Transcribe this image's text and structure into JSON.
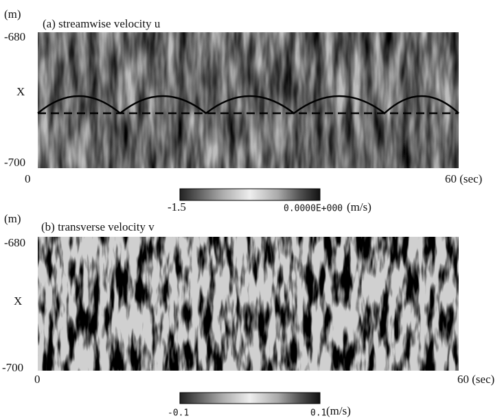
{
  "panels": [
    {
      "unit": "(m)",
      "title": "(a) streamwise velocity u",
      "y_top": "-680",
      "y_label": "X",
      "y_bottom": "-700",
      "x_start": "0",
      "x_end": "60 (sec)",
      "colorbar_min": "-1.5",
      "colorbar_max": "0.0000E+000",
      "colorbar_unit": "(m/s)"
    },
    {
      "unit": "(m)",
      "title": "(b) transverse velocity v",
      "y_top": "-680",
      "y_label": "X",
      "y_bottom": "-700",
      "x_start": "0",
      "x_end": "60 (sec)",
      "colorbar_min": "-0.1",
      "colorbar_max": "0.1",
      "colorbar_unit": "(m/s)"
    }
  ]
}
